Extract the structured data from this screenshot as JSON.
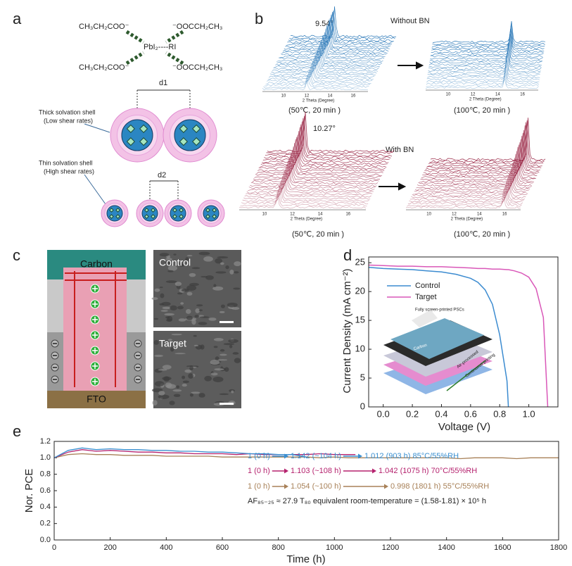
{
  "panel_labels": [
    "a",
    "b",
    "c",
    "d",
    "e"
  ],
  "panel_a": {
    "ligands": [
      "CH₃CH₂COO⁻",
      "⁻OOCCH₂CH₃",
      "CH₃CH₂COO⁻",
      "⁻OOCCH₂CH₃"
    ],
    "center": "PbI₂----RI",
    "d1": "d1",
    "d2": "d2",
    "thick": [
      "Thick solvation shell",
      "(Low shear rates)"
    ],
    "thin": [
      "Thin solvation shell",
      "(High shear rates)"
    ]
  },
  "panel_b": {
    "peaks": [
      "9.54°",
      "10.27°"
    ],
    "conditions": [
      "Without BN",
      "With BN"
    ],
    "axis_label": "2 Theta (Degree)",
    "ticks": [
      "10",
      "12",
      "14",
      "16"
    ],
    "captions": [
      "(50℃, 20 min )",
      "(100℃, 20 min )"
    ]
  },
  "panel_c": {
    "layers": [
      "Carbon",
      "FTO"
    ],
    "images": [
      "Control",
      "Target"
    ]
  },
  "chart_data": [
    {
      "type": "line",
      "xlabel": "Voltage (V)",
      "ylabel": "Current Density (mA cm⁻²)",
      "x": [
        -0.1,
        0,
        0.1,
        0.2,
        0.3,
        0.4,
        0.5,
        0.6,
        0.65,
        0.7,
        0.75,
        0.8,
        0.85,
        0.86,
        0.9,
        0.95,
        1.0,
        1.05,
        1.1,
        1.13
      ],
      "series": [
        {
          "name": "Control",
          "color": "#3b8bd0",
          "values": [
            24.2,
            24.0,
            23.9,
            23.8,
            23.6,
            23.4,
            23.0,
            22.3,
            21.6,
            20.3,
            17.8,
            12.5,
            4.5,
            0,
            null,
            null,
            null,
            null,
            null,
            null
          ]
        },
        {
          "name": "Target",
          "color": "#d957b8",
          "values": [
            24.6,
            24.5,
            24.4,
            24.4,
            24.3,
            24.3,
            24.2,
            24.1,
            24.0,
            24.0,
            23.9,
            23.9,
            23.8,
            23.8,
            23.6,
            23.2,
            22.5,
            20.5,
            15.5,
            0
          ]
        }
      ],
      "xlim": [
        -0.1,
        1.2
      ],
      "ylim": [
        0,
        26
      ],
      "xticks": [
        {
          "value": 0,
          "label": "0.0"
        },
        0.2,
        0.4,
        0.6,
        0.8,
        {
          "value": 1,
          "label": "1.0"
        }
      ],
      "yticks": [
        0,
        5,
        10,
        15,
        20,
        25
      ],
      "legend": "upper left",
      "inset": [
        "Fully screen-printed PSCs",
        "Carbon",
        "Air-processed",
        "Continuous printing"
      ]
    },
    {
      "type": "line",
      "xlabel": "Time (h)",
      "ylabel": "Nor. PCE",
      "x": [
        0,
        50,
        100,
        150,
        200,
        250,
        300,
        350,
        400,
        450,
        500,
        550,
        600,
        650,
        700,
        750,
        800,
        850,
        900,
        950,
        1000,
        1050,
        1075,
        1100,
        1150,
        1200,
        1250,
        1300,
        1350,
        1400,
        1450,
        1500,
        1550,
        1600,
        1650,
        1700,
        1750,
        1800
      ],
      "series": [
        {
          "color": "#3a8fd0",
          "values": [
            1.0,
            1.09,
            1.12,
            1.1,
            1.11,
            1.1,
            1.1,
            1.09,
            1.09,
            1.08,
            1.08,
            1.07,
            1.07,
            1.06,
            1.05,
            1.05,
            1.04,
            1.04,
            1.01,
            null,
            null,
            null,
            null,
            null,
            null,
            null,
            null,
            null,
            null,
            null,
            null,
            null,
            null,
            null,
            null,
            null,
            null,
            null
          ]
        },
        {
          "color": "#b5226e",
          "values": [
            1.0,
            1.07,
            1.1,
            1.08,
            1.09,
            1.08,
            1.07,
            1.07,
            1.06,
            1.06,
            1.05,
            1.05,
            1.05,
            1.04,
            1.05,
            1.04,
            1.04,
            1.04,
            1.04,
            1.05,
            1.04,
            1.04,
            1.04,
            null,
            null,
            null,
            null,
            null,
            null,
            null,
            null,
            null,
            null,
            null,
            null,
            null,
            null,
            null
          ]
        },
        {
          "color": "#a88158",
          "values": [
            1.0,
            1.04,
            1.05,
            1.04,
            1.04,
            1.03,
            1.03,
            1.03,
            1.02,
            1.02,
            1.02,
            1.02,
            1.01,
            1.01,
            1.01,
            1.01,
            1.01,
            1.01,
            1.01,
            1.0,
            1.01,
            1.0,
            1.0,
            1.0,
            1.0,
            1.0,
            1.0,
            1.0,
            1.0,
            1.0,
            0.99,
            1.0,
            1.0,
            1.0,
            0.99,
            1.0,
            1.0,
            1.0
          ]
        }
      ],
      "xlim": [
        0,
        1800
      ],
      "ylim": [
        0,
        1.2
      ],
      "xticks": [
        0,
        200,
        400,
        600,
        800,
        1000,
        1200,
        1400,
        1600,
        1800
      ],
      "yticks": [
        {
          "value": 0,
          "label": "0.0"
        },
        0.2,
        0.4,
        0.6,
        0.8,
        {
          "value": 1,
          "label": "1.0"
        },
        1.2
      ],
      "annotations": [
        {
          "color": "#3a8fd0",
          "parts": [
            "1 (0 h)",
            "1.142 (~104 h)",
            "1.012 (903 h) 85°C/55%RH"
          ]
        },
        {
          "color": "#b5226e",
          "parts": [
            "1 (0 h)",
            "1.103 (~108 h)",
            "1.042 (1075 h) 70°C/55%RH"
          ]
        },
        {
          "color": "#a88158",
          "parts": [
            "1 (0 h)",
            "1.054 (~100 h)",
            "0.998 (1801 h) 55°C/55%RH"
          ]
        }
      ],
      "note": "AF₈₅₋₂₅ ≈ 27.9   T₈₀ equivalent room-temperature = (1.58-1.81) × 10⁵ h"
    }
  ]
}
